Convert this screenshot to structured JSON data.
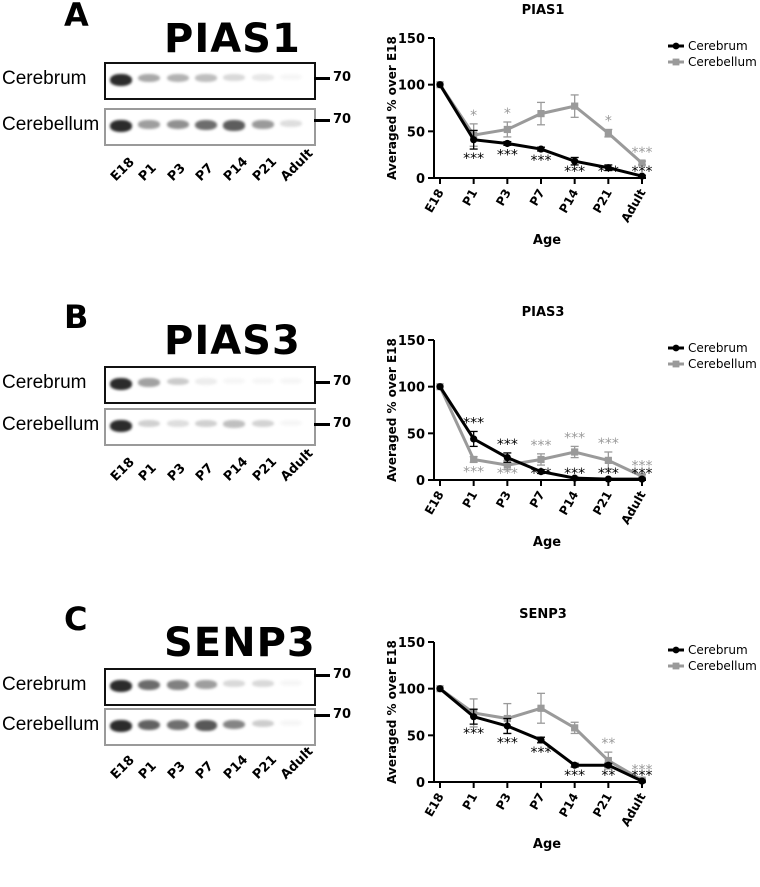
{
  "panels": [
    {
      "letter": "A",
      "blot": {
        "title": "PIAS1",
        "rows": [
          "Cerebrum",
          "Cerebellum"
        ],
        "mw_marker": "70",
        "lanes": [
          "E18",
          "P1",
          "P3",
          "P7",
          "P14",
          "P21",
          "Adult"
        ]
      },
      "chart_data": {
        "type": "line",
        "title": "PIAS1",
        "xlabel": "Age",
        "ylabel": "Averaged % over E18",
        "categories": [
          "E18",
          "P1",
          "P3",
          "P7",
          "P14",
          "P21",
          "Adult"
        ],
        "ylim": [
          0,
          150
        ],
        "yticks": [
          0,
          50,
          100,
          150
        ],
        "legend_position": "top-right",
        "series": [
          {
            "name": "Cerebrum",
            "color": "#000000",
            "values": [
              100,
              41,
              37,
              31,
              18,
              11,
              2
            ],
            "err": [
              0,
              10,
              2,
              2,
              4,
              3,
              1
            ],
            "stars": [
              "",
              "***",
              "***",
              "***",
              "***",
              "***",
              "***"
            ]
          },
          {
            "name": "Cerebellum",
            "color": "#9a9a9a",
            "values": [
              100,
              46,
              52,
              69,
              77,
              48,
              16
            ],
            "err": [
              0,
              12,
              8,
              12,
              12,
              4,
              2
            ],
            "stars": [
              "",
              "*",
              "*",
              "",
              "",
              "*",
              "***"
            ]
          }
        ]
      }
    },
    {
      "letter": "B",
      "blot": {
        "title": "PIAS3",
        "rows": [
          "Cerebrum",
          "Cerebellum"
        ],
        "mw_marker": "70",
        "lanes": [
          "E18",
          "P1",
          "P3",
          "P7",
          "P14",
          "P21",
          "Adult"
        ]
      },
      "chart_data": {
        "type": "line",
        "title": "PIAS3",
        "xlabel": "Age",
        "ylabel": "Averaged % over E18",
        "categories": [
          "E18",
          "P1",
          "P3",
          "P7",
          "P14",
          "P21",
          "Adult"
        ],
        "ylim": [
          0,
          150
        ],
        "yticks": [
          0,
          50,
          100,
          150
        ],
        "legend_position": "top-right",
        "series": [
          {
            "name": "Cerebrum",
            "color": "#000000",
            "values": [
              100,
              44,
              24,
              9,
              2,
              1,
              1
            ],
            "err": [
              0,
              8,
              5,
              2,
              1,
              1,
              1
            ],
            "stars": [
              "",
              "***",
              "***",
              "***",
              "***",
              "***",
              "***"
            ]
          },
          {
            "name": "Cerebellum",
            "color": "#9a9a9a",
            "values": [
              100,
              22,
              16,
              22,
              30,
              21,
              4
            ],
            "err": [
              0,
              3,
              5,
              6,
              6,
              9,
              2
            ],
            "stars": [
              "",
              "***",
              "***",
              "***",
              "***",
              "***",
              "***"
            ]
          }
        ]
      }
    },
    {
      "letter": "C",
      "blot": {
        "title": "SENP3",
        "rows": [
          "Cerebrum",
          "Cerebellum"
        ],
        "mw_marker": "70",
        "lanes": [
          "E18",
          "P1",
          "P3",
          "P7",
          "P14",
          "P21",
          "Adult"
        ]
      },
      "chart_data": {
        "type": "line",
        "title": "SENP3",
        "xlabel": "Age",
        "ylabel": "Averaged % over E18",
        "categories": [
          "E18",
          "P1",
          "P3",
          "P7",
          "P14",
          "P21",
          "Adult"
        ],
        "ylim": [
          0,
          150
        ],
        "yticks": [
          0,
          50,
          100,
          150
        ],
        "legend_position": "top-right",
        "series": [
          {
            "name": "Cerebrum",
            "color": "#000000",
            "values": [
              100,
              70,
              60,
              45,
              18,
              18,
              1
            ],
            "err": [
              0,
              8,
              8,
              3,
              2,
              2,
              1
            ],
            "stars": [
              "",
              "***",
              "***",
              "***",
              "***",
              "**",
              "***"
            ]
          },
          {
            "name": "Cerebellum",
            "color": "#9a9a9a",
            "values": [
              100,
              74,
              68,
              79,
              58,
              23,
              2
            ],
            "err": [
              0,
              15,
              16,
              16,
              6,
              9,
              2
            ],
            "stars": [
              "",
              "",
              "",
              "",
              "",
              "**",
              "***"
            ]
          }
        ]
      }
    }
  ]
}
